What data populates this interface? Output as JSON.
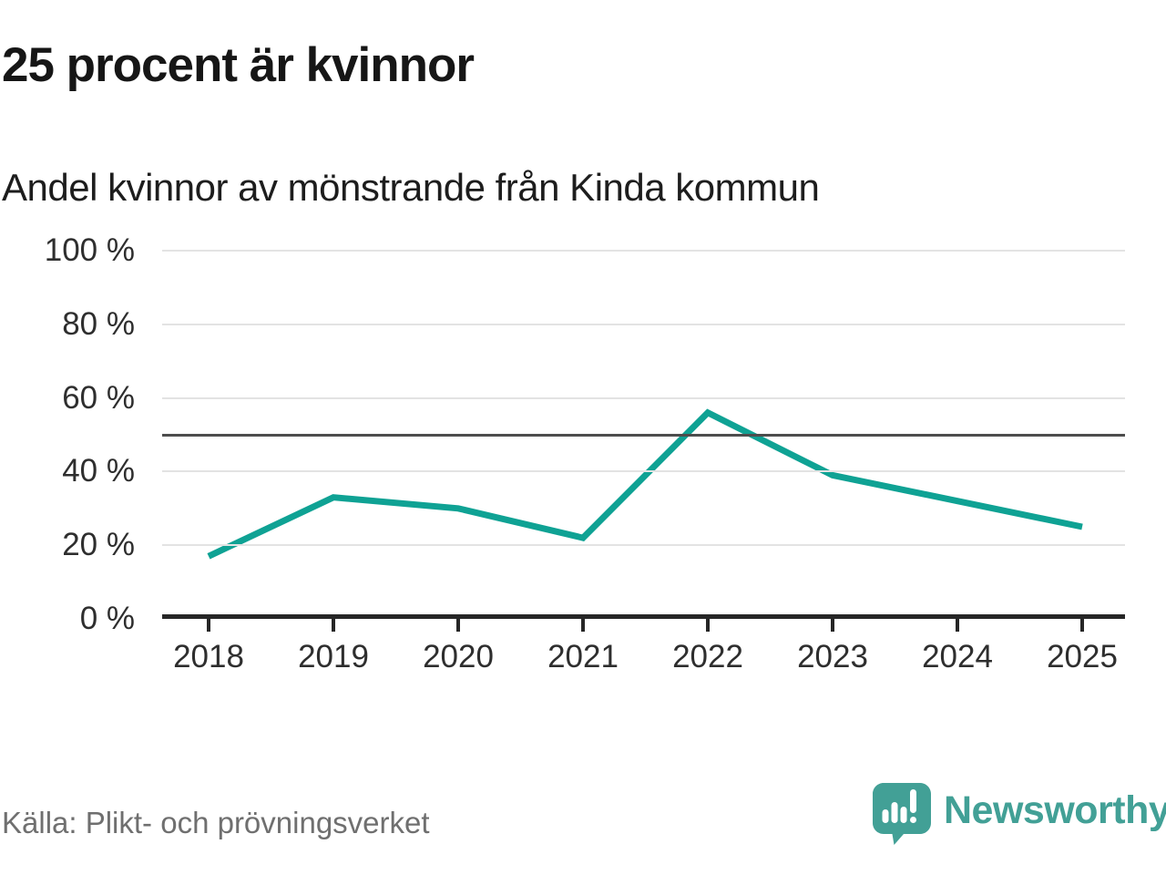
{
  "title": "25 procent är kvinnor",
  "subtitle": "Andel kvinnor av mönstrande från Kinda kommun",
  "source": "Källa: Plikt- och prövningsverket",
  "brand": {
    "name": "Newsworthy",
    "icon": "newsworthy-bubble-bar-chart-icon"
  },
  "colors": {
    "line": "#0FA294",
    "grid": "#E3E3E3",
    "reference_line": "#4D4D4D",
    "axis": "#262626",
    "title_text": "#161616",
    "label_text": "#2E2E2E",
    "muted_text": "#6F6F6F",
    "brand_teal": "#42A096",
    "background": "#FFFFFF"
  },
  "chart_data": {
    "type": "line",
    "title": "25 procent är kvinnor",
    "subtitle": "Andel kvinnor av mönstrande från Kinda kommun",
    "x": [
      2018,
      2019,
      2020,
      2021,
      2022,
      2023,
      2024,
      2025
    ],
    "series": [
      {
        "name": "Andel kvinnor av mönstrande",
        "values": [
          17,
          33,
          30,
          22,
          56,
          39,
          32,
          25
        ]
      }
    ],
    "unit": "%",
    "ylim": [
      0,
      100
    ],
    "yticks": [
      0,
      20,
      40,
      60,
      80,
      100
    ],
    "ytick_labels": [
      "0 %",
      "20 %",
      "40 %",
      "60 %",
      "80 %",
      "100 %"
    ],
    "xtick_labels": [
      "2018",
      "2019",
      "2020",
      "2021",
      "2022",
      "2023",
      "2024",
      "2025"
    ],
    "reference_line_y": 50,
    "grid": "horizontal",
    "legend": "none"
  }
}
